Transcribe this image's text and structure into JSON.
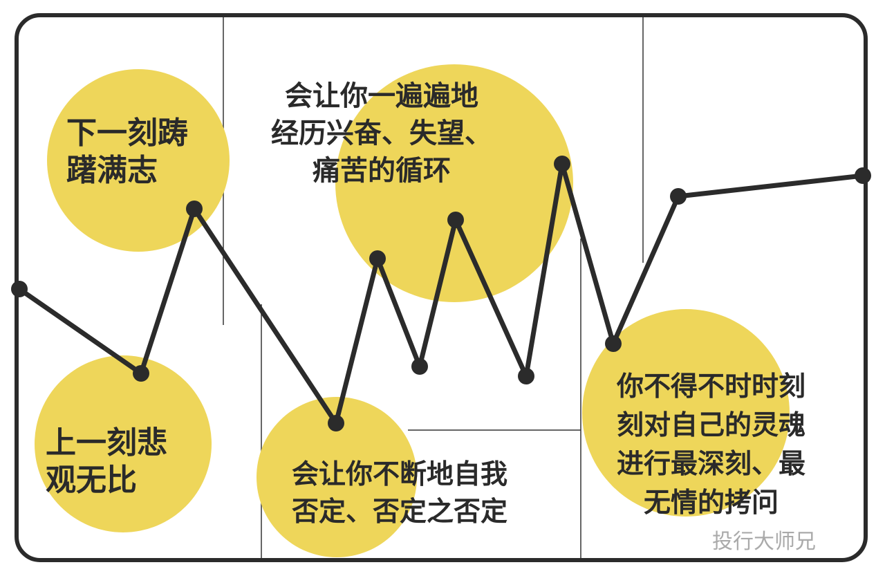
{
  "labels": {
    "next_moment": "下一刻踌\n躇满志",
    "prev_moment": "上一刻悲\n观无比",
    "cycle": "会让你一遍遍地\n经历兴奋、失望、\n痛苦的循环",
    "self_denial": "会让你不断地自我\n否定、否定之否定",
    "soul": "你不得不时时刻\n刻对自己的灵魂\n进行最深刻、最\n无情的拷问"
  },
  "watermark": "投行大师兄",
  "colors": {
    "circle": "#eed65a",
    "line": "#2b2b2b"
  }
}
